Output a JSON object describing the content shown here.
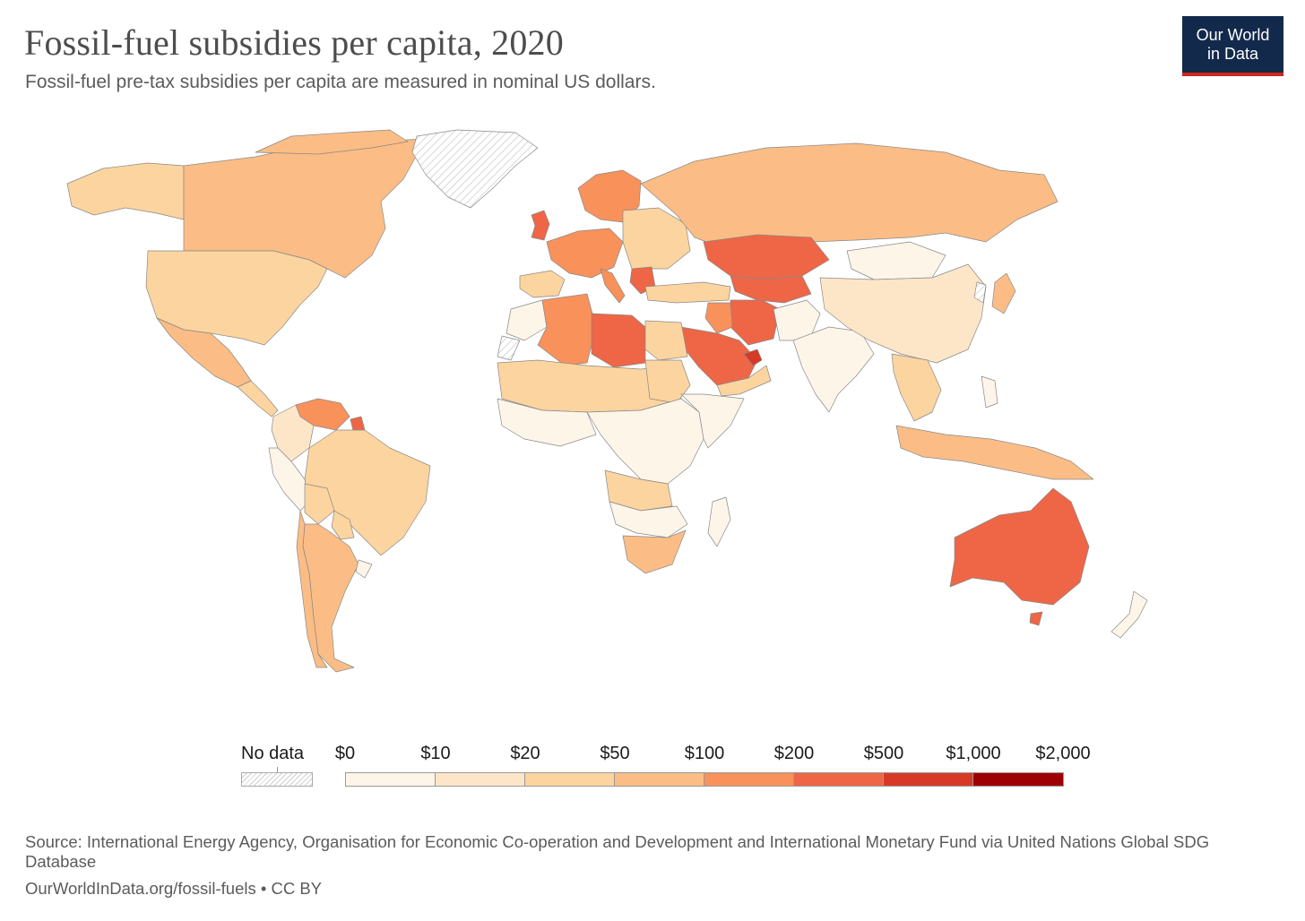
{
  "header": {
    "title": "Fossil-fuel subsidies per capita, 2020",
    "subtitle": "Fossil-fuel pre-tax subsidies per capita are measured in nominal US dollars."
  },
  "logo": {
    "line1": "Our World",
    "line2": "in Data",
    "bg": "#12294b",
    "accent": "#ce261e"
  },
  "legend": {
    "no_data_label": "No data",
    "ticks": [
      "$0",
      "$10",
      "$20",
      "$50",
      "$100",
      "$200",
      "$500",
      "$1,000",
      "$2,000"
    ],
    "colors": [
      "#fef5e9",
      "#fde6c7",
      "#fcd49f",
      "#fbbd85",
      "#f9915b",
      "#ee6646",
      "#d63a26",
      "#9e0103"
    ]
  },
  "footer": {
    "source": "Source: International Energy Agency, Organisation for Economic Co-operation and Development and International Monetary Fund via United Nations Global SDG Database",
    "url": "OurWorldInData.org/fossil-fuels • CC BY"
  }
}
